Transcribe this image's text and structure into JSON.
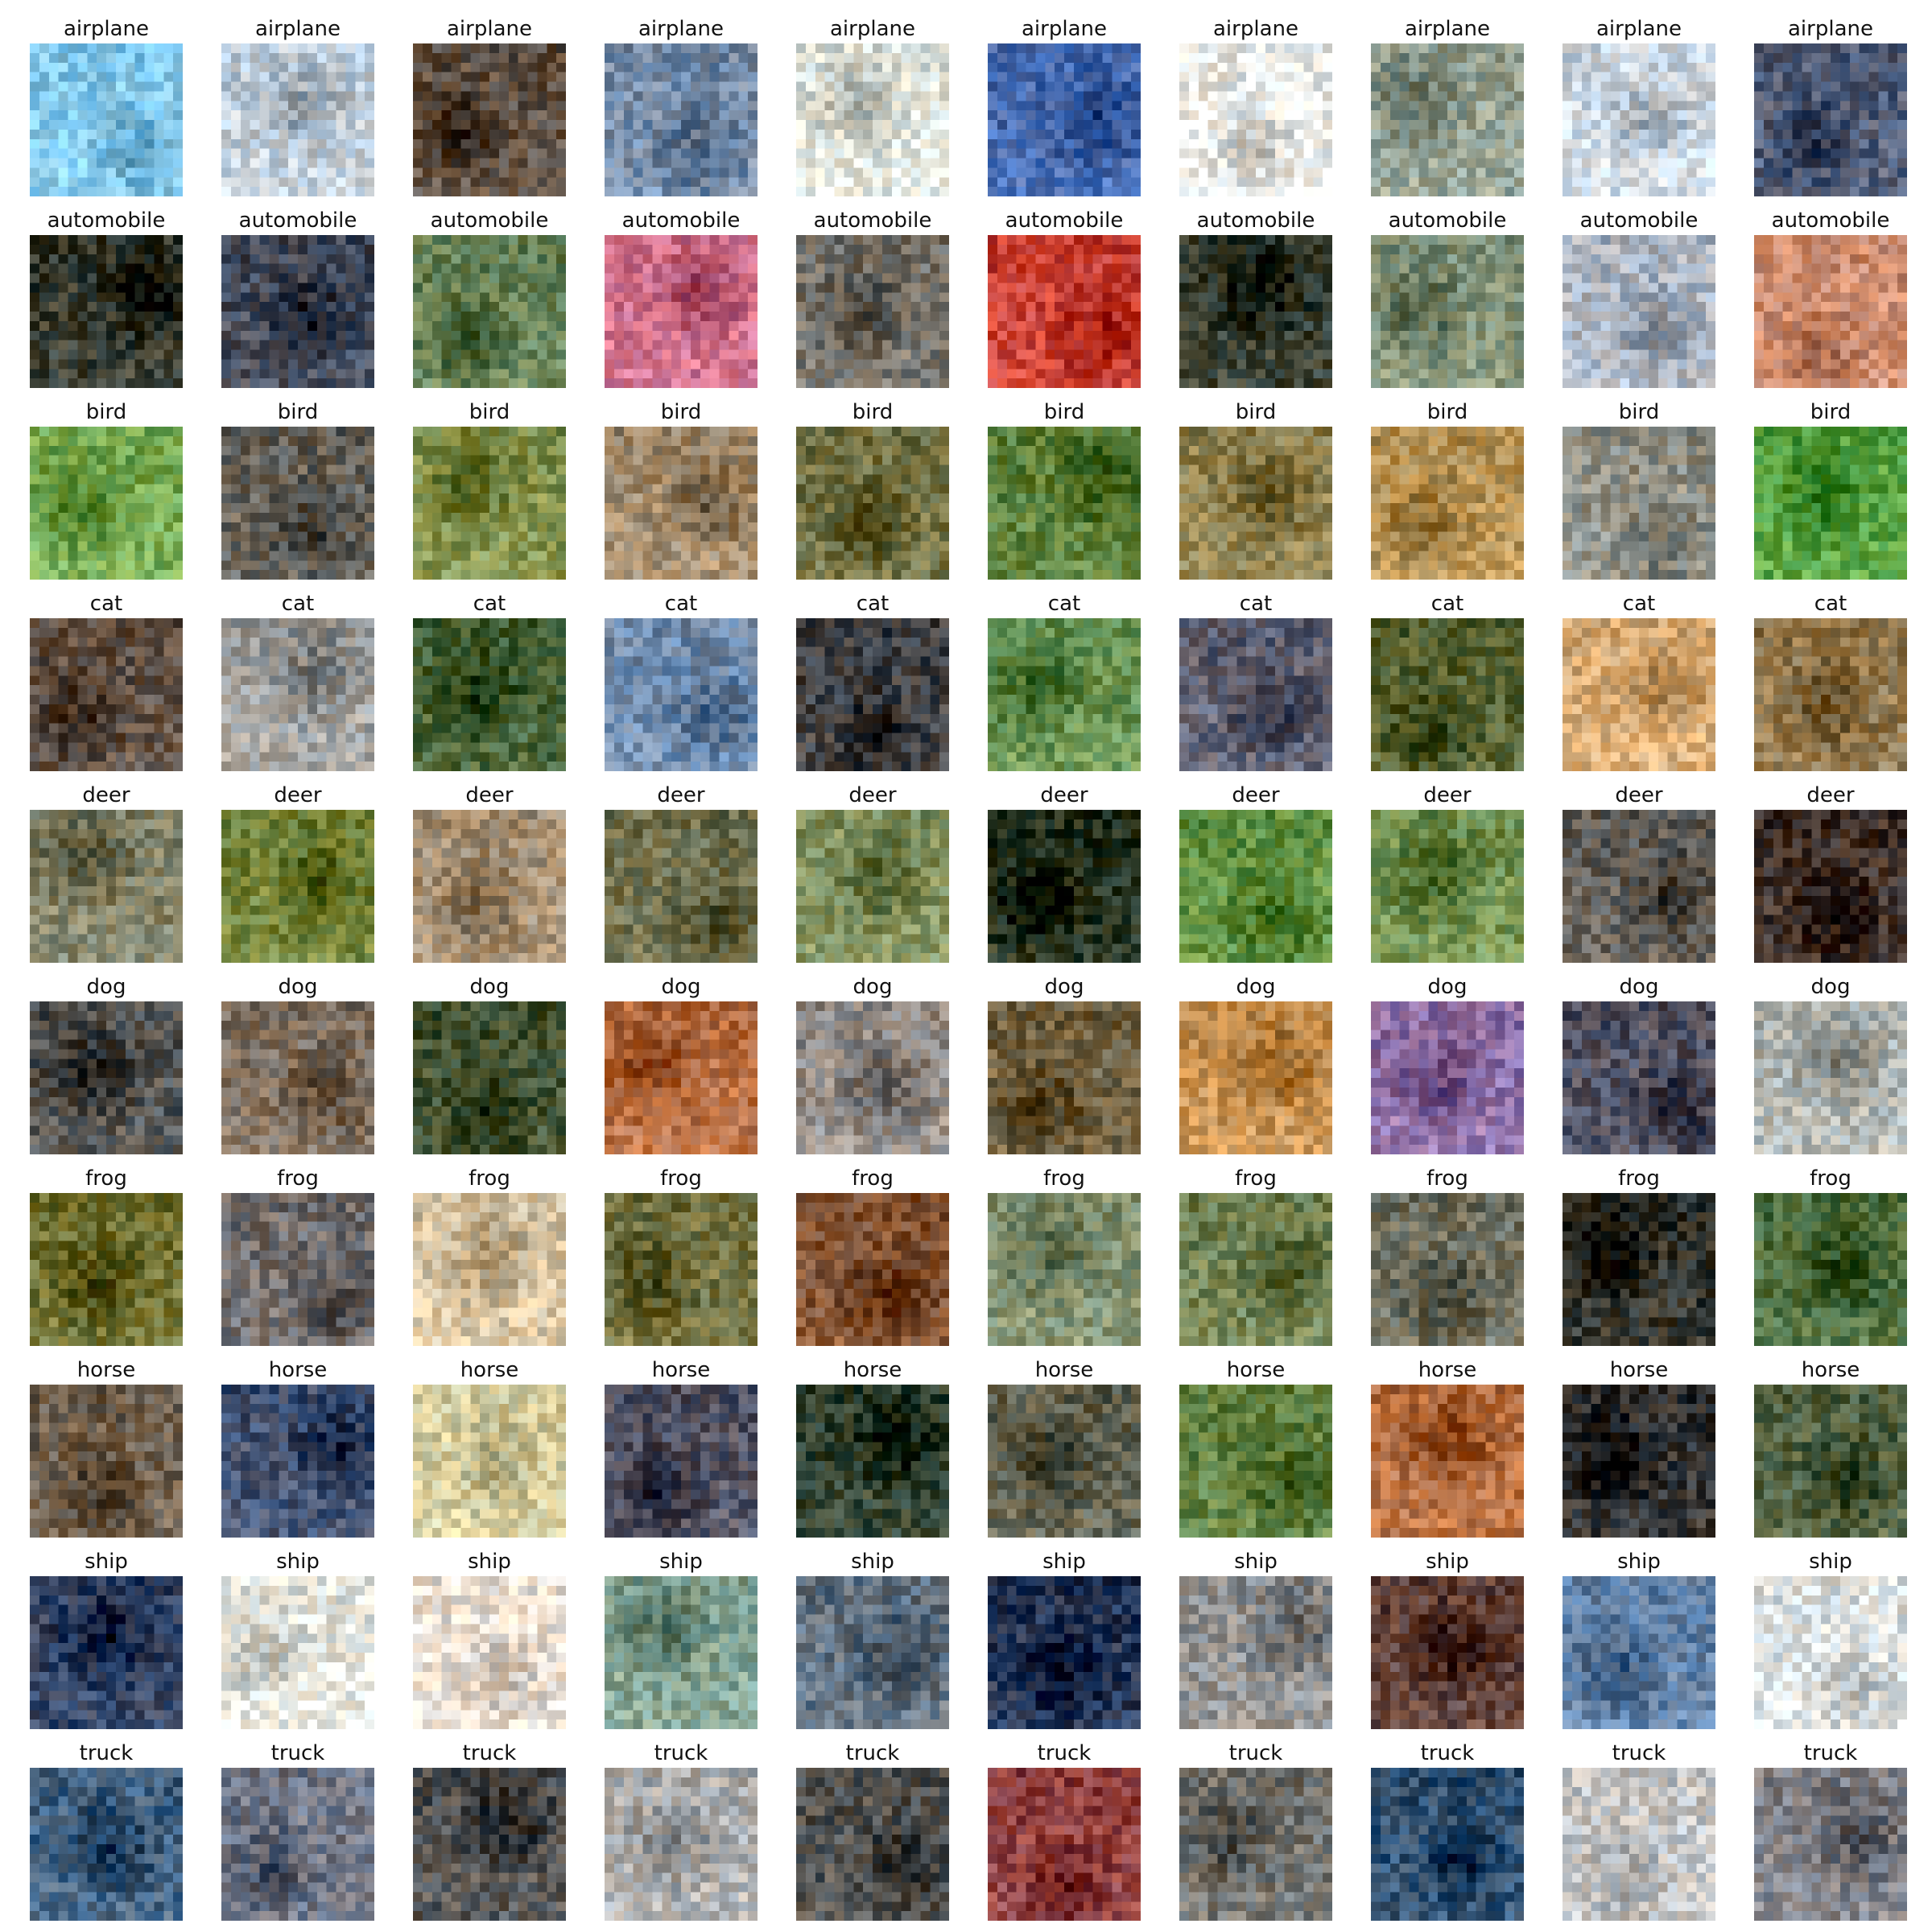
{
  "figure": {
    "rows": [
      {
        "label": "airplane",
        "columns": 10
      },
      {
        "label": "automobile",
        "columns": 10
      },
      {
        "label": "bird",
        "columns": 10
      },
      {
        "label": "cat",
        "columns": 10
      },
      {
        "label": "deer",
        "columns": 10
      },
      {
        "label": "dog",
        "columns": 10
      },
      {
        "label": "frog",
        "columns": 10
      },
      {
        "label": "horse",
        "columns": 10
      },
      {
        "label": "ship",
        "columns": 10
      },
      {
        "label": "truck",
        "columns": 10
      }
    ]
  },
  "palettes": {
    "airplane": [
      "#7fc4e8",
      "#b9c6d2",
      "#5a4a3c",
      "#6f86a3",
      "#d8dcd4",
      "#3f63a8",
      "#e6e6e2",
      "#8d9a8c",
      "#c8d2dc",
      "#4b5670"
    ],
    "automobile": [
      "#2f3328",
      "#3d4352",
      "#5f7a4f",
      "#c96a86",
      "#6e6a62",
      "#c33a2e",
      "#2c3326",
      "#7a8a70",
      "#a8b0bc",
      "#c8876a"
    ],
    "bird": [
      "#6fa24a",
      "#5e5a52",
      "#7c8a44",
      "#9b8466",
      "#6b6a3c",
      "#567a34",
      "#8a7c4a",
      "#b08c4e",
      "#8a8a80",
      "#4f9a3a"
    ],
    "cat": [
      "#5a4a3e",
      "#9a9a98",
      "#3f5a2e",
      "#6a86a8",
      "#3a3a3c",
      "#5f8a4a",
      "#5a5a6a",
      "#4e5a2a",
      "#d0a46e",
      "#8a7046"
    ],
    "deer": [
      "#7a7a60",
      "#6a7a30",
      "#a08a6e",
      "#6a6a48",
      "#7a8a58",
      "#1e2a16",
      "#5a8a3a",
      "#6a8a4a",
      "#5a5650",
      "#3a2a22"
    ],
    "dog": [
      "#4a4a48",
      "#7a6a5a",
      "#3a4a2a",
      "#b0663a",
      "#8a8480",
      "#6a5a3a",
      "#c08a4a",
      "#8a6aa0",
      "#4a4a5a",
      "#a8aca8"
    ],
    "frog": [
      "#6a6a2a",
      "#6a6666",
      "#d0bc9a",
      "#6a6a3a",
      "#7a4a2a",
      "#7a8a6a",
      "#6a7a4a",
      "#6a6a5a",
      "#2a2a22",
      "#4a6a3a"
    ],
    "horse": [
      "#6a5a48",
      "#3a4a6a",
      "#d0c89a",
      "#4a4a5a",
      "#2a3a28",
      "#5a5a48",
      "#5a7a3a",
      "#b0683a",
      "#2a2a2a",
      "#4a5a3a"
    ],
    "ship": [
      "#2a3a5a",
      "#e0e0d8",
      "#e8dcd0",
      "#7a9a8a",
      "#5a6a7a",
      "#1e2e4e",
      "#8a8a8a",
      "#5a3a32",
      "#5a7aa0",
      "#d8dcdc"
    ],
    "truck": [
      "#3a5a7a",
      "#6a7080",
      "#4a4a4a",
      "#a8a8a8",
      "#4a4a48",
      "#8a3a3a",
      "#6a6a66",
      "#2a4a6a",
      "#c0c0c0",
      "#7a7a80"
    ]
  }
}
